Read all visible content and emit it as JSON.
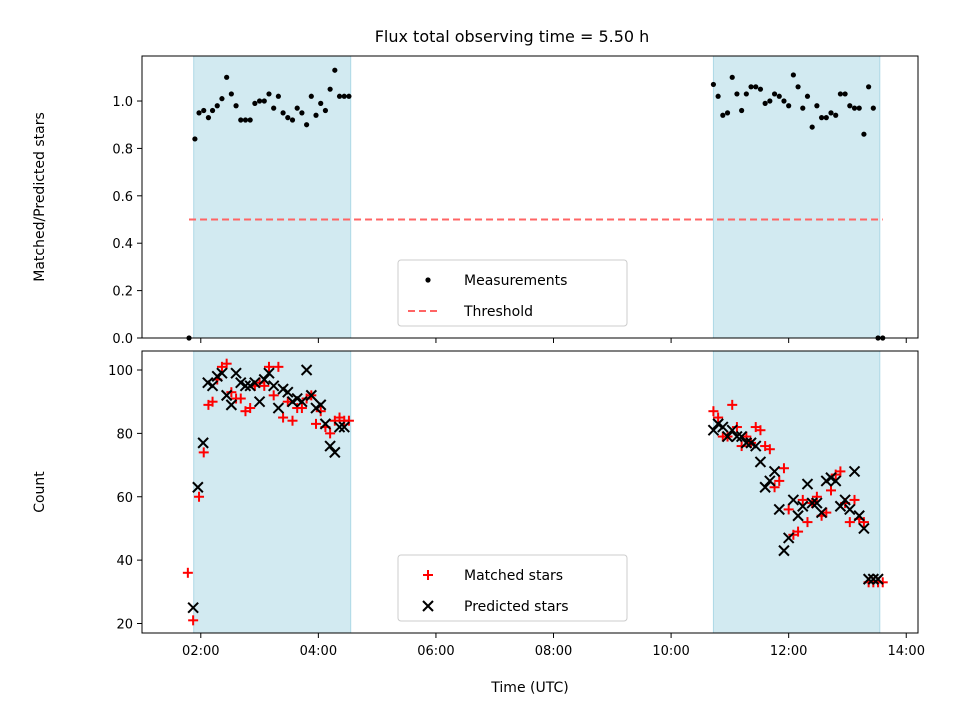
{
  "title": "Flux total observing time = 5.50 h",
  "colors": {
    "shade": "#add8e6",
    "threshold": "#ff6464",
    "matched": "#ff0000",
    "predicted": "#000000",
    "measurement": "#000000"
  },
  "chart_data": [
    {
      "type": "scatter",
      "ylabel": "Matched/Predicted stars",
      "xlabel": "",
      "ylim": [
        0,
        1.19
      ],
      "yticks": [
        "0.0",
        "0.2",
        "0.4",
        "0.6",
        "0.8",
        "1.0"
      ],
      "ytick_values": [
        0,
        0.2,
        0.4,
        0.6,
        0.8,
        1.0
      ],
      "x_axis_unit": "hours UTC",
      "xlim": [
        1.0,
        14.2
      ],
      "shaded_intervals": [
        [
          1.88,
          4.55
        ],
        [
          10.72,
          13.55
        ]
      ],
      "legend": {
        "position": "bottom-center",
        "entries": [
          "Measurements",
          "Threshold"
        ]
      },
      "threshold": {
        "name": "Threshold",
        "value": 0.5,
        "x_range": [
          1.8,
          13.6
        ],
        "style": "dashed"
      },
      "series": [
        {
          "name": "Measurements",
          "marker": "dot",
          "x": [
            1.8,
            1.9,
            1.97,
            2.05,
            2.13,
            2.2,
            2.28,
            2.36,
            2.44,
            2.52,
            2.6,
            2.68,
            2.76,
            2.84,
            2.92,
            3.0,
            3.08,
            3.16,
            3.24,
            3.32,
            3.4,
            3.48,
            3.56,
            3.64,
            3.72,
            3.8,
            3.88,
            3.96,
            4.04,
            4.12,
            4.2,
            4.28,
            4.36,
            4.44,
            4.52,
            10.72,
            10.8,
            10.88,
            10.96,
            11.04,
            11.12,
            11.2,
            11.28,
            11.36,
            11.44,
            11.52,
            11.6,
            11.68,
            11.76,
            11.84,
            11.92,
            12.0,
            12.08,
            12.16,
            12.24,
            12.32,
            12.4,
            12.48,
            12.56,
            12.64,
            12.72,
            12.8,
            12.88,
            12.96,
            13.04,
            13.12,
            13.2,
            13.28,
            13.36,
            13.44,
            13.52,
            13.6
          ],
          "y": [
            0.0,
            0.84,
            0.95,
            0.96,
            0.93,
            0.96,
            0.98,
            1.01,
            1.1,
            1.03,
            0.98,
            0.92,
            0.92,
            0.92,
            0.99,
            1.0,
            1.0,
            1.03,
            0.97,
            1.02,
            0.95,
            0.93,
            0.92,
            0.97,
            0.95,
            0.9,
            1.02,
            0.94,
            0.99,
            0.96,
            1.05,
            1.13,
            1.02,
            1.02,
            1.02,
            1.07,
            1.02,
            0.94,
            0.95,
            1.1,
            1.03,
            0.96,
            1.03,
            1.06,
            1.06,
            1.05,
            0.99,
            1.0,
            1.03,
            1.02,
            1.0,
            0.98,
            1.11,
            1.06,
            0.97,
            1.02,
            0.89,
            0.98,
            0.93,
            0.93,
            0.95,
            0.94,
            1.03,
            1.03,
            0.98,
            0.97,
            0.97,
            0.86,
            1.06,
            0.97,
            0.0,
            0.0
          ]
        }
      ]
    },
    {
      "type": "scatter",
      "ylabel": "Count",
      "xlabel": "Time (UTC)",
      "ylim": [
        17,
        106
      ],
      "yticks": [
        "20",
        "40",
        "60",
        "80",
        "100"
      ],
      "ytick_values": [
        20,
        40,
        60,
        80,
        100
      ],
      "xlim": [
        1.0,
        14.2
      ],
      "xticks": [
        "02:00",
        "04:00",
        "06:00",
        "08:00",
        "10:00",
        "12:00",
        "14:00"
      ],
      "xtick_values": [
        2,
        4,
        6,
        8,
        10,
        12,
        14
      ],
      "shaded_intervals": [
        [
          1.88,
          4.55
        ],
        [
          10.72,
          13.55
        ]
      ],
      "legend": {
        "position": "bottom-center",
        "entries": [
          "Matched stars",
          "Predicted stars"
        ]
      },
      "series": [
        {
          "name": "Matched stars",
          "marker": "plus",
          "x": [
            1.78,
            1.87,
            1.97,
            2.05,
            2.13,
            2.2,
            2.28,
            2.36,
            2.44,
            2.52,
            2.6,
            2.68,
            2.76,
            2.84,
            2.92,
            3.0,
            3.08,
            3.16,
            3.24,
            3.32,
            3.4,
            3.48,
            3.56,
            3.64,
            3.72,
            3.8,
            3.88,
            3.96,
            4.04,
            4.12,
            4.2,
            4.28,
            4.36,
            4.44,
            4.52,
            10.72,
            10.8,
            10.88,
            10.96,
            11.04,
            11.12,
            11.2,
            11.28,
            11.36,
            11.44,
            11.52,
            11.6,
            11.68,
            11.76,
            11.84,
            11.92,
            12.0,
            12.08,
            12.16,
            12.24,
            12.32,
            12.4,
            12.48,
            12.56,
            12.64,
            12.72,
            12.8,
            12.88,
            12.96,
            13.04,
            13.12,
            13.2,
            13.28,
            13.36,
            13.44,
            13.52,
            13.6
          ],
          "y": [
            36,
            21,
            60,
            74,
            89,
            90,
            97,
            101,
            102,
            93,
            91,
            91,
            87,
            88,
            95,
            96,
            95,
            101,
            92,
            101,
            85,
            90,
            84,
            88,
            88,
            91,
            92,
            83,
            87,
            82,
            80,
            84,
            85,
            84,
            84,
            87,
            85,
            79,
            79,
            89,
            82,
            76,
            79,
            77,
            82,
            81,
            76,
            75,
            63,
            65,
            69,
            56,
            48,
            49,
            59,
            52,
            58,
            60,
            54,
            55,
            62,
            67,
            68,
            58,
            52,
            59,
            53,
            52,
            33,
            33,
            33,
            33
          ]
        },
        {
          "name": "Predicted stars",
          "marker": "x",
          "x": [
            1.87,
            1.95,
            2.04,
            2.12,
            2.2,
            2.28,
            2.36,
            2.44,
            2.52,
            2.6,
            2.68,
            2.76,
            2.84,
            2.92,
            3.0,
            3.08,
            3.16,
            3.24,
            3.32,
            3.4,
            3.48,
            3.56,
            3.64,
            3.72,
            3.8,
            3.88,
            3.96,
            4.04,
            4.12,
            4.2,
            4.28,
            4.36,
            4.44,
            10.72,
            10.8,
            10.88,
            10.96,
            11.04,
            11.12,
            11.2,
            11.28,
            11.36,
            11.44,
            11.52,
            11.6,
            11.68,
            11.76,
            11.84,
            11.92,
            12.0,
            12.08,
            12.16,
            12.24,
            12.32,
            12.4,
            12.48,
            12.56,
            12.64,
            12.72,
            12.8,
            12.88,
            12.96,
            13.04,
            13.12,
            13.2,
            13.28,
            13.36,
            13.44,
            13.52
          ],
          "y": [
            25,
            63,
            77,
            96,
            95,
            98,
            99,
            92,
            89,
            99,
            96,
            95,
            95,
            96,
            90,
            97,
            99,
            95,
            88,
            94,
            93,
            90,
            91,
            90,
            100,
            92,
            88,
            89,
            83,
            76,
            74,
            82,
            82,
            81,
            83,
            82,
            79,
            81,
            79,
            79,
            77,
            77,
            76,
            71,
            63,
            65,
            68,
            56,
            43,
            47,
            59,
            54,
            57,
            64,
            58,
            58,
            55,
            65,
            66,
            65,
            57,
            59,
            56,
            68,
            54,
            50,
            34,
            34,
            34
          ]
        }
      ]
    }
  ]
}
